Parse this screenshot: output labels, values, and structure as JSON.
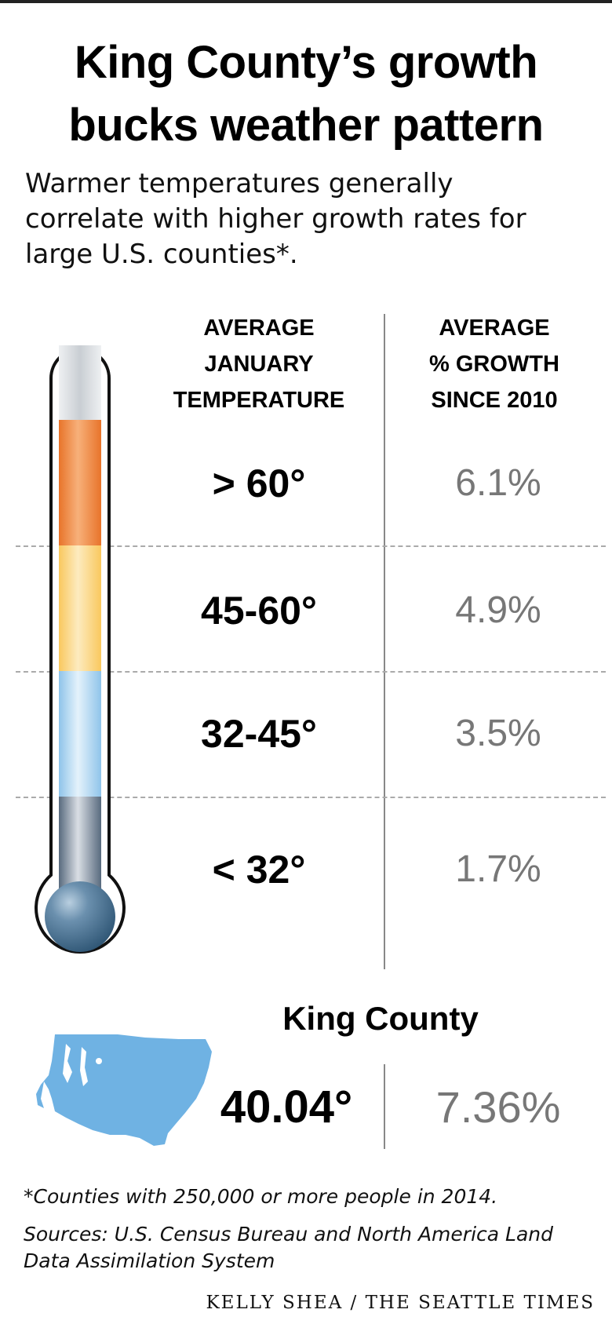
{
  "header": {
    "title_line1": "King County’s growth",
    "title_line2": "bucks weather pattern",
    "subtitle_line1": "Warmer temperatures generally",
    "subtitle_line2": "correlate with higher growth rates for",
    "subtitle_line3": "large U.S. counties*."
  },
  "columns": {
    "temperature": [
      "AVERAGE",
      "JANUARY",
      "TEMPERATURE"
    ],
    "growth": [
      "AVERAGE",
      "% GROWTH",
      "SINCE 2010"
    ]
  },
  "chart_data": {
    "type": "table",
    "columns": [
      "AVERAGE JANUARY TEMPERATURE",
      "AVERAGE % GROWTH SINCE 2010"
    ],
    "rows": [
      {
        "temperature": "> 60°",
        "growth": "6.1%",
        "growth_value": 6.1,
        "band_color": "#f08a3c"
      },
      {
        "temperature": "45-60°",
        "growth": "4.9%",
        "growth_value": 4.9,
        "band_color": "#fbd57e"
      },
      {
        "temperature": "32-45°",
        "growth": "3.5%",
        "growth_value": 3.5,
        "band_color": "#a8d3f0"
      },
      {
        "temperature": "< 32°",
        "growth": "1.7%",
        "growth_value": 1.7,
        "band_color": "#6b7c8e"
      }
    ],
    "highlight": {
      "label": "King County",
      "temperature": "40.04°",
      "growth": "7.36%",
      "growth_value": 7.36,
      "temperature_value": 40.04
    }
  },
  "colors": {
    "accent_map": "#6fb2e3",
    "growth_text": "#777777",
    "bulb": "#3f6a8c"
  },
  "footer": {
    "footnote": "*Counties with 250,000 or more people in 2014.",
    "sources_line1": "Sources: U.S. Census Bureau and North America Land",
    "sources_line2": "Data Assimilation System",
    "credit": "KELLY SHEA / THE SEATTLE TIMES"
  }
}
